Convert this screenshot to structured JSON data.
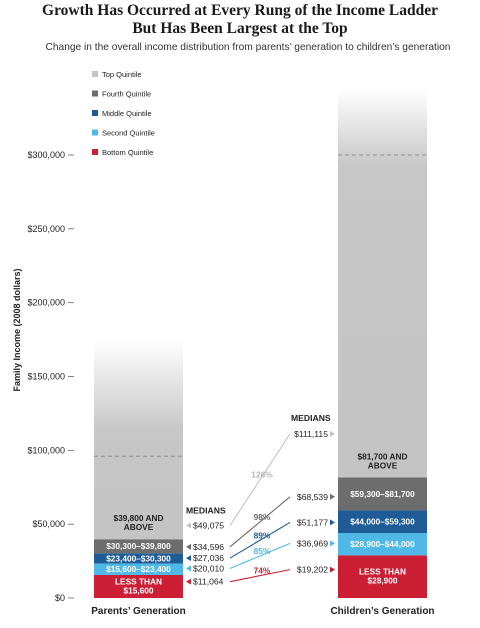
{
  "chart_data": {
    "type": "bar",
    "title_line1": "Growth Has Occurred at Every Rung of the Income Ladder",
    "title_line2": "But Has Been Largest at the Top",
    "subtitle": "Change in the overall income distribution from parents’ generation to children’s generation",
    "ylabel": "Family Income (2008 dollars)",
    "ylim": [
      0,
      300000
    ],
    "yticks": [
      0,
      50000,
      100000,
      150000,
      200000,
      250000,
      300000
    ],
    "ytick_labels": [
      "$0",
      "$50,000",
      "$100,000",
      "$150,000",
      "$200,000",
      "$250,000",
      "$300,000"
    ],
    "categories": [
      "Parents’ Generation",
      "Children’s Generation"
    ],
    "legend": [
      {
        "label": "Top Quintile",
        "color": "#c4c4c4"
      },
      {
        "label": "Fourth Quintile",
        "color": "#6d6d6d"
      },
      {
        "label": "Middle Quintile",
        "color": "#1f5b96"
      },
      {
        "label": "Second Quintile",
        "color": "#4fb8e6"
      },
      {
        "label": "Bottom Quintile",
        "color": "#cc1f36"
      }
    ],
    "series": [
      {
        "name": "Parents’ Generation",
        "bands": [
          {
            "quintile": "Bottom Quintile",
            "from": 0,
            "to": 15600,
            "label_line1": "LESS THAN",
            "label_line2": "$15,600",
            "color": "#cc1f36"
          },
          {
            "quintile": "Second Quintile",
            "from": 15600,
            "to": 23400,
            "label_line1": "$15,600–$23,400",
            "label_line2": "",
            "color": "#4fb8e6"
          },
          {
            "quintile": "Middle Quintile",
            "from": 23400,
            "to": 30300,
            "label_line1": "$23,400–$30,300",
            "label_line2": "",
            "color": "#1f5b96"
          },
          {
            "quintile": "Fourth Quintile",
            "from": 30300,
            "to": 39800,
            "label_line1": "$30,300–$39,800",
            "label_line2": "",
            "color": "#6d6d6d"
          },
          {
            "quintile": "Top Quintile",
            "from": 39800,
            "to": 175000,
            "label_line1": "$39,800 AND",
            "label_line2": "ABOVE",
            "color": "#c4c4c4"
          }
        ],
        "medians": [
          11064,
          20010,
          27036,
          34596,
          49075
        ],
        "median_labels": [
          "$11,064",
          "$20,010",
          "$27,036",
          "$34,596",
          "$49,075"
        ],
        "top_median_line": 96000
      },
      {
        "name": "Children’s Generation",
        "bands": [
          {
            "quintile": "Bottom Quintile",
            "from": 0,
            "to": 28900,
            "label_line1": "LESS THAN",
            "label_line2": "$28,900",
            "color": "#cc1f36"
          },
          {
            "quintile": "Second Quintile",
            "from": 28900,
            "to": 44000,
            "label_line1": "$28,900–$44,000",
            "label_line2": "",
            "color": "#4fb8e6"
          },
          {
            "quintile": "Middle Quintile",
            "from": 44000,
            "to": 59300,
            "label_line1": "$44,000–$59,300",
            "label_line2": "",
            "color": "#1f5b96"
          },
          {
            "quintile": "Fourth Quintile",
            "from": 59300,
            "to": 81700,
            "label_line1": "$59,300–$81,700",
            "label_line2": "",
            "color": "#6d6d6d"
          },
          {
            "quintile": "Top Quintile",
            "from": 81700,
            "to": 345000,
            "label_line1": "$81,700 AND",
            "label_line2": "ABOVE",
            "color": "#c4c4c4"
          }
        ],
        "medians": [
          19202,
          36969,
          51177,
          68539,
          111115
        ],
        "median_labels": [
          "$19,202",
          "$36,969",
          "$51,177",
          "$68,539",
          "$111,115"
        ],
        "top_median_line": 300000
      }
    ],
    "growth": [
      {
        "label": "74%",
        "color": "#cc1f36"
      },
      {
        "label": "85%",
        "color": "#4fb8e6"
      },
      {
        "label": "89%",
        "color": "#1f5b96"
      },
      {
        "label": "98%",
        "color": "#6d6d6d"
      },
      {
        "label": "126%",
        "color": "#c4c4c4"
      }
    ],
    "medians_heading": "MEDIANS"
  }
}
